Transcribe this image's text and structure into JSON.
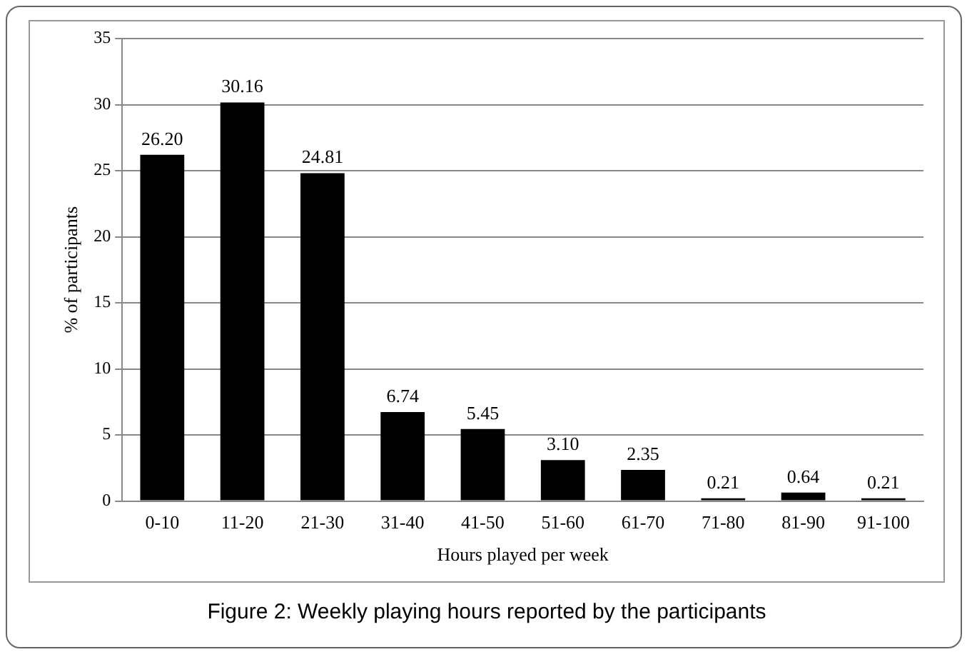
{
  "chart_data": {
    "type": "bar",
    "xlabel": "Hours played per week",
    "ylabel": "% of participants",
    "categories": [
      "0-10",
      "11-20",
      "21-30",
      "31-40",
      "41-50",
      "51-60",
      "61-70",
      "71-80",
      "81-90",
      "91-100"
    ],
    "values": [
      26.2,
      30.16,
      24.81,
      6.74,
      5.45,
      3.1,
      2.35,
      0.21,
      0.64,
      0.21
    ],
    "value_labels": [
      "26.20",
      "30.16",
      "24.81",
      "6.74",
      "5.45",
      "3.10",
      "2.35",
      "0.21",
      "0.64",
      "0.21"
    ],
    "color": "#000000",
    "ylim": [
      0,
      35
    ],
    "yticks": [
      0,
      5,
      10,
      15,
      20,
      25,
      30,
      35
    ],
    "grid": "y",
    "legend": false,
    "annotations": [
      "Figure 2: Weekly playing hours reported by the participants"
    ]
  }
}
